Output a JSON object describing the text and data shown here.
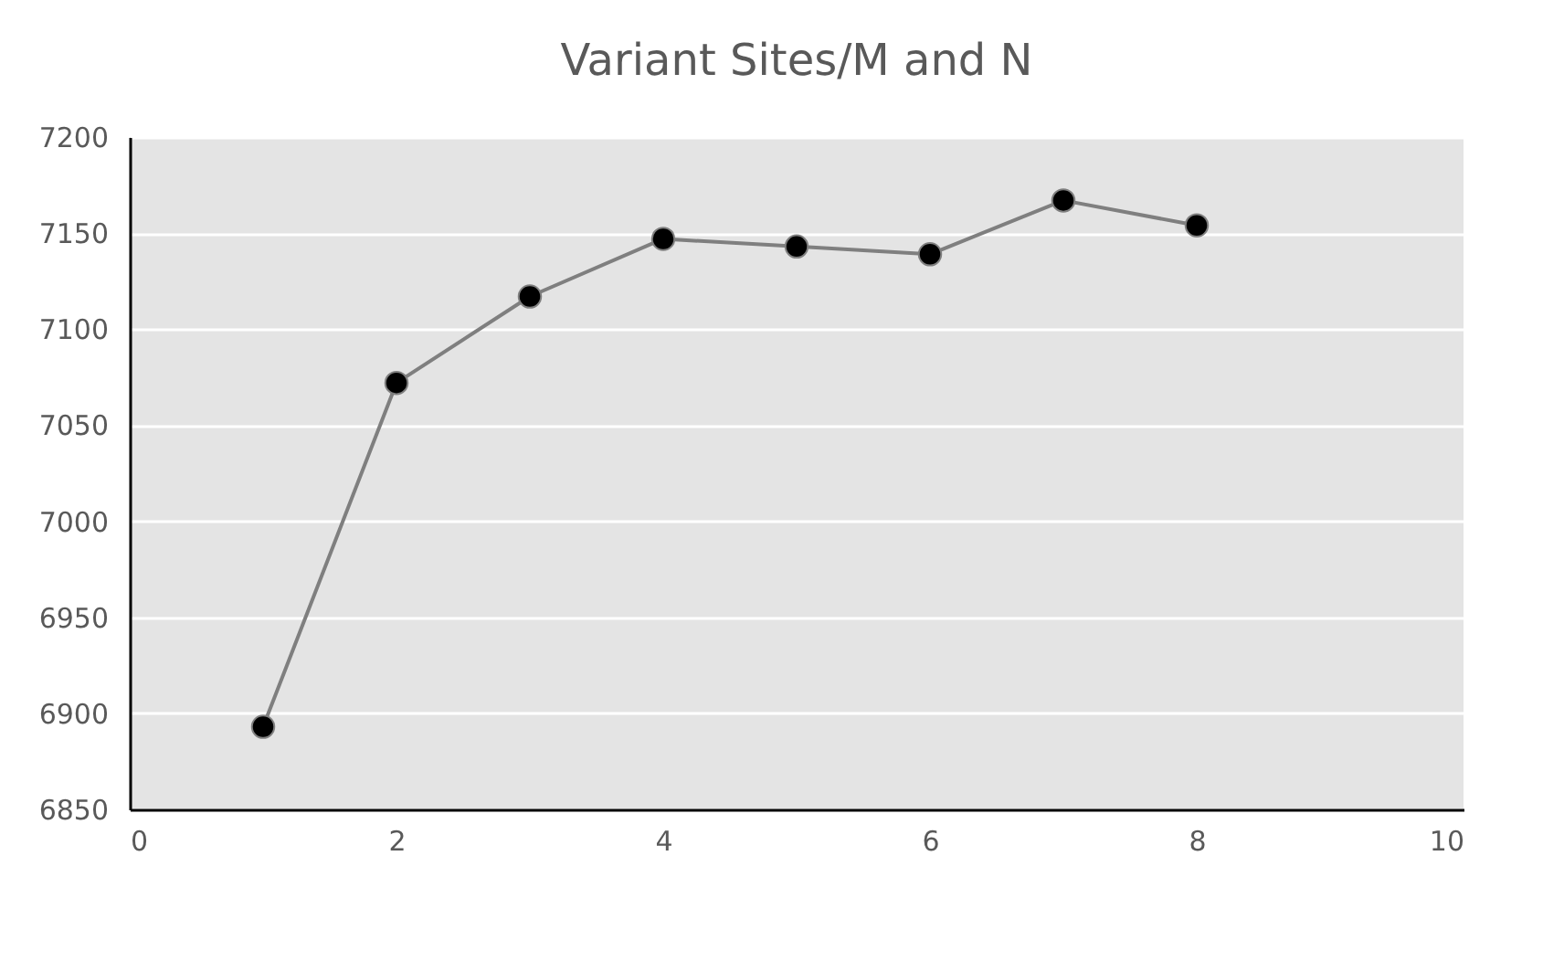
{
  "chart_data": {
    "type": "line",
    "title": "Variant Sites/M and N",
    "x": [
      1,
      2,
      3,
      4,
      5,
      6,
      7,
      8
    ],
    "series": [
      {
        "color": "#7f7f7f",
        "values": [
          6893,
          7072,
          7117,
          7147,
          7143,
          7139,
          7167,
          7154
        ]
      }
    ],
    "xlim": [
      0,
      10
    ],
    "xticks": [
      0,
      2,
      4,
      6,
      8,
      10
    ],
    "ylim": [
      6850,
      7200
    ],
    "yticks": [
      6850,
      6900,
      6950,
      7000,
      7050,
      7100,
      7150,
      7200
    ],
    "grid": "y",
    "marker": "circle",
    "line_style": "solid"
  }
}
